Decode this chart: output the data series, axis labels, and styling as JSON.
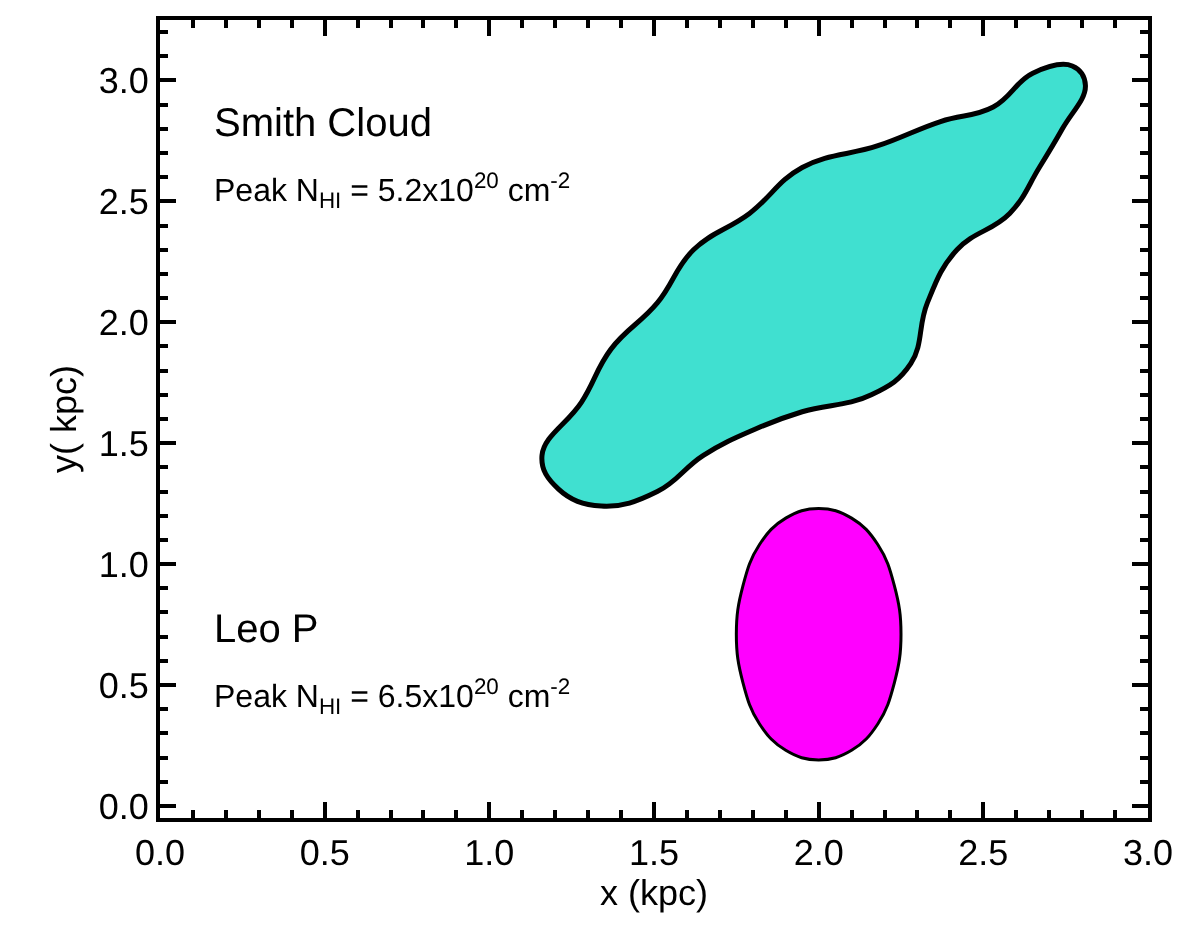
{
  "chart_data": {
    "type": "area",
    "xlabel": "x (kpc)",
    "ylabel": "y( kpc)",
    "xlim": [
      0,
      3.0
    ],
    "ylim": [
      -0.05,
      3.25
    ],
    "xticks": [
      {
        "value": 0,
        "label": "0.0"
      },
      0.5,
      {
        "value": 1,
        "label": "1.0"
      },
      1.5,
      {
        "value": 2,
        "label": "2.0"
      },
      2.5,
      {
        "value": 3,
        "label": "3.0"
      }
    ],
    "yticks": [
      {
        "value": 0,
        "label": "0.0"
      },
      0.5,
      {
        "value": 1,
        "label": "1.0"
      },
      1.5,
      {
        "value": 2,
        "label": "2.0"
      },
      2.5,
      {
        "value": 3,
        "label": "3.0"
      }
    ],
    "series": [
      {
        "color": "#40e0d0",
        "x": [
          1.16,
          1.28,
          1.37,
          1.51,
          1.62,
          1.79,
          1.95,
          2.18,
          2.37,
          2.53,
          2.65,
          2.77,
          2.81,
          2.74,
          2.67,
          2.58,
          2.42,
          2.33,
          2.28,
          2.16,
          1.95,
          1.81,
          1.65,
          1.51,
          1.34,
          1.21
        ],
        "values": [
          1.45,
          1.67,
          1.89,
          2.08,
          2.3,
          2.45,
          2.64,
          2.73,
          2.83,
          2.89,
          3.03,
          3.06,
          2.98,
          2.8,
          2.64,
          2.45,
          2.3,
          2.08,
          1.83,
          1.7,
          1.63,
          1.56,
          1.45,
          1.3,
          1.24,
          1.31
        ]
      },
      {
        "color": "#ff00ff",
        "x": [
          2.25,
          2.23,
          2.18,
          2.1,
          2.0,
          1.9,
          1.82,
          1.77,
          1.75,
          1.77,
          1.82,
          1.9,
          2.0,
          2.1,
          2.18,
          2.23
        ],
        "values": [
          0.71,
          0.91,
          1.08,
          1.19,
          1.23,
          1.19,
          1.08,
          0.91,
          0.71,
          0.51,
          0.34,
          0.23,
          0.19,
          0.23,
          0.34,
          0.51
        ]
      }
    ],
    "annotations": [
      "Smith Cloud",
      "Peak N$_{HI}$ = 5.2x10$^{20}$ cm$^{-2}$",
      "Leo P",
      "Peak N$_{HI}$ = 6.5x10$^{20}$ cm$^{-2}$"
    ]
  }
}
